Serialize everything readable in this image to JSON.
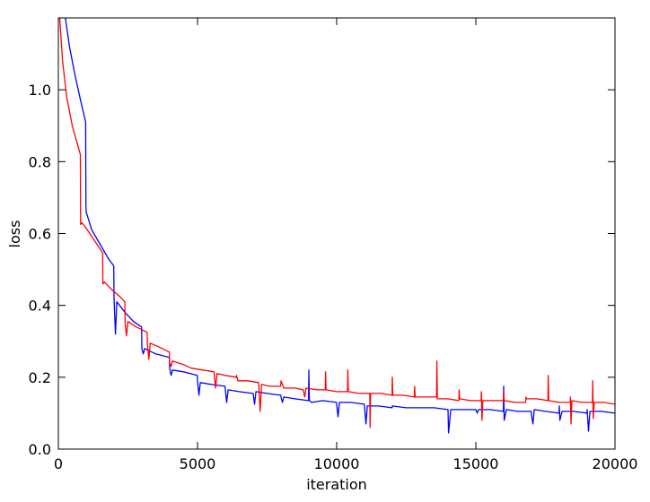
{
  "chart_data": {
    "type": "line",
    "title": "",
    "xlabel": "iteration",
    "ylabel": "loss",
    "xlim": [
      0,
      20000
    ],
    "ylim": [
      0.0,
      1.2
    ],
    "xticks": [
      0,
      5000,
      10000,
      15000,
      20000
    ],
    "yticks": [
      0.0,
      0.2,
      0.4,
      0.6,
      0.8,
      1.0
    ],
    "xtick_labels": [
      "0",
      "5000",
      "10000",
      "15000",
      "20000"
    ],
    "ytick_labels": [
      "0.0",
      "0.2",
      "0.4",
      "0.6",
      "0.8",
      "1.0"
    ],
    "grid": false,
    "legend": "none",
    "series": [
      {
        "color": "#0000ff",
        "points": [
          [
            250,
            1.2
          ],
          [
            400,
            1.12
          ],
          [
            600,
            1.04
          ],
          [
            800,
            0.97
          ],
          [
            980,
            0.91
          ],
          [
            990,
            0.68
          ],
          [
            1000,
            0.66
          ],
          [
            1200,
            0.61
          ],
          [
            1500,
            0.57
          ],
          [
            1800,
            0.53
          ],
          [
            1990,
            0.51
          ],
          [
            2000,
            0.42
          ],
          [
            2050,
            0.32
          ],
          [
            2100,
            0.41
          ],
          [
            2400,
            0.38
          ],
          [
            2700,
            0.355
          ],
          [
            2990,
            0.34
          ],
          [
            3000,
            0.28
          ],
          [
            3050,
            0.265
          ],
          [
            3100,
            0.28
          ],
          [
            3500,
            0.265
          ],
          [
            3990,
            0.255
          ],
          [
            4000,
            0.225
          ],
          [
            4050,
            0.205
          ],
          [
            4100,
            0.22
          ],
          [
            4500,
            0.215
          ],
          [
            4990,
            0.205
          ],
          [
            5000,
            0.19
          ],
          [
            5050,
            0.15
          ],
          [
            5100,
            0.185
          ],
          [
            5500,
            0.18
          ],
          [
            5990,
            0.175
          ],
          [
            6000,
            0.165
          ],
          [
            6050,
            0.13
          ],
          [
            6100,
            0.165
          ],
          [
            6500,
            0.16
          ],
          [
            6990,
            0.155
          ],
          [
            7000,
            0.155
          ],
          [
            7050,
            0.125
          ],
          [
            7100,
            0.16
          ],
          [
            7500,
            0.155
          ],
          [
            7990,
            0.15
          ],
          [
            8000,
            0.145
          ],
          [
            8050,
            0.13
          ],
          [
            8100,
            0.145
          ],
          [
            8500,
            0.14
          ],
          [
            8990,
            0.135
          ],
          [
            9000,
            0.22
          ],
          [
            9020,
            0.135
          ],
          [
            9100,
            0.13
          ],
          [
            9500,
            0.135
          ],
          [
            9990,
            0.13
          ],
          [
            10000,
            0.125
          ],
          [
            10050,
            0.09
          ],
          [
            10100,
            0.13
          ],
          [
            10500,
            0.13
          ],
          [
            10990,
            0.125
          ],
          [
            11000,
            0.12
          ],
          [
            11050,
            0.07
          ],
          [
            11100,
            0.12
          ],
          [
            11500,
            0.12
          ],
          [
            11990,
            0.115
          ],
          [
            12000,
            0.12
          ],
          [
            12500,
            0.115
          ],
          [
            12990,
            0.115
          ],
          [
            13000,
            0.115
          ],
          [
            13500,
            0.115
          ],
          [
            13990,
            0.11
          ],
          [
            14000,
            0.11
          ],
          [
            14020,
            0.045
          ],
          [
            14100,
            0.11
          ],
          [
            14500,
            0.11
          ],
          [
            14990,
            0.11
          ],
          [
            15000,
            0.11
          ],
          [
            15050,
            0.1
          ],
          [
            15100,
            0.11
          ],
          [
            15500,
            0.11
          ],
          [
            15990,
            0.105
          ],
          [
            16000,
            0.175
          ],
          [
            16020,
            0.08
          ],
          [
            16100,
            0.11
          ],
          [
            16500,
            0.105
          ],
          [
            16990,
            0.105
          ],
          [
            17000,
            0.095
          ],
          [
            17050,
            0.07
          ],
          [
            17100,
            0.11
          ],
          [
            17500,
            0.105
          ],
          [
            17990,
            0.1
          ],
          [
            18000,
            0.12
          ],
          [
            18020,
            0.08
          ],
          [
            18100,
            0.105
          ],
          [
            18500,
            0.105
          ],
          [
            18990,
            0.1
          ],
          [
            19000,
            0.11
          ],
          [
            19050,
            0.05
          ],
          [
            19100,
            0.105
          ],
          [
            19500,
            0.105
          ],
          [
            20000,
            0.1
          ]
        ]
      },
      {
        "color": "#ff0000",
        "points": [
          [
            50,
            1.2
          ],
          [
            150,
            1.08
          ],
          [
            300,
            0.98
          ],
          [
            500,
            0.9
          ],
          [
            790,
            0.82
          ],
          [
            800,
            0.625
          ],
          [
            850,
            0.63
          ],
          [
            1000,
            0.615
          ],
          [
            1300,
            0.58
          ],
          [
            1600,
            0.545
          ],
          [
            1590,
            0.54
          ],
          [
            1600,
            0.46
          ],
          [
            1650,
            0.465
          ],
          [
            1900,
            0.445
          ],
          [
            2200,
            0.425
          ],
          [
            2390,
            0.41
          ],
          [
            2400,
            0.35
          ],
          [
            2450,
            0.315
          ],
          [
            2500,
            0.355
          ],
          [
            2800,
            0.34
          ],
          [
            3190,
            0.325
          ],
          [
            3200,
            0.29
          ],
          [
            3250,
            0.25
          ],
          [
            3300,
            0.295
          ],
          [
            3600,
            0.285
          ],
          [
            3990,
            0.27
          ],
          [
            4000,
            0.24
          ],
          [
            4050,
            0.23
          ],
          [
            4100,
            0.245
          ],
          [
            4500,
            0.235
          ],
          [
            4790,
            0.225
          ],
          [
            4800,
            0.225
          ],
          [
            5200,
            0.22
          ],
          [
            5590,
            0.215
          ],
          [
            5600,
            0.21
          ],
          [
            5650,
            0.17
          ],
          [
            5700,
            0.21
          ],
          [
            6000,
            0.205
          ],
          [
            6390,
            0.2
          ],
          [
            6400,
            0.205
          ],
          [
            6450,
            0.19
          ],
          [
            6800,
            0.19
          ],
          [
            7190,
            0.185
          ],
          [
            7200,
            0.18
          ],
          [
            7250,
            0.105
          ],
          [
            7300,
            0.18
          ],
          [
            7600,
            0.175
          ],
          [
            7990,
            0.175
          ],
          [
            8000,
            0.19
          ],
          [
            8100,
            0.17
          ],
          [
            8500,
            0.17
          ],
          [
            8790,
            0.165
          ],
          [
            8800,
            0.165
          ],
          [
            8850,
            0.145
          ],
          [
            8900,
            0.17
          ],
          [
            9300,
            0.165
          ],
          [
            9590,
            0.165
          ],
          [
            9600,
            0.215
          ],
          [
            9620,
            0.165
          ],
          [
            10000,
            0.16
          ],
          [
            10390,
            0.16
          ],
          [
            10400,
            0.22
          ],
          [
            10420,
            0.16
          ],
          [
            10800,
            0.155
          ],
          [
            11190,
            0.155
          ],
          [
            11200,
            0.06
          ],
          [
            11220,
            0.155
          ],
          [
            11600,
            0.155
          ],
          [
            11990,
            0.15
          ],
          [
            12000,
            0.2
          ],
          [
            12020,
            0.15
          ],
          [
            12400,
            0.15
          ],
          [
            12790,
            0.145
          ],
          [
            12800,
            0.175
          ],
          [
            12820,
            0.145
          ],
          [
            13200,
            0.145
          ],
          [
            13590,
            0.145
          ],
          [
            13600,
            0.245
          ],
          [
            13620,
            0.14
          ],
          [
            14000,
            0.14
          ],
          [
            14390,
            0.135
          ],
          [
            14400,
            0.165
          ],
          [
            14420,
            0.14
          ],
          [
            14800,
            0.135
          ],
          [
            15190,
            0.135
          ],
          [
            15200,
            0.16
          ],
          [
            15220,
            0.08
          ],
          [
            15250,
            0.135
          ],
          [
            15600,
            0.135
          ],
          [
            15990,
            0.135
          ],
          [
            16000,
            0.16
          ],
          [
            16020,
            0.135
          ],
          [
            16400,
            0.13
          ],
          [
            16790,
            0.13
          ],
          [
            16800,
            0.145
          ],
          [
            16820,
            0.14
          ],
          [
            17200,
            0.14
          ],
          [
            17590,
            0.135
          ],
          [
            17600,
            0.205
          ],
          [
            17620,
            0.135
          ],
          [
            18000,
            0.13
          ],
          [
            18390,
            0.13
          ],
          [
            18400,
            0.145
          ],
          [
            18420,
            0.07
          ],
          [
            18450,
            0.135
          ],
          [
            18800,
            0.13
          ],
          [
            19190,
            0.13
          ],
          [
            19200,
            0.19
          ],
          [
            19220,
            0.085
          ],
          [
            19250,
            0.13
          ],
          [
            19600,
            0.13
          ],
          [
            20000,
            0.125
          ]
        ]
      }
    ]
  }
}
